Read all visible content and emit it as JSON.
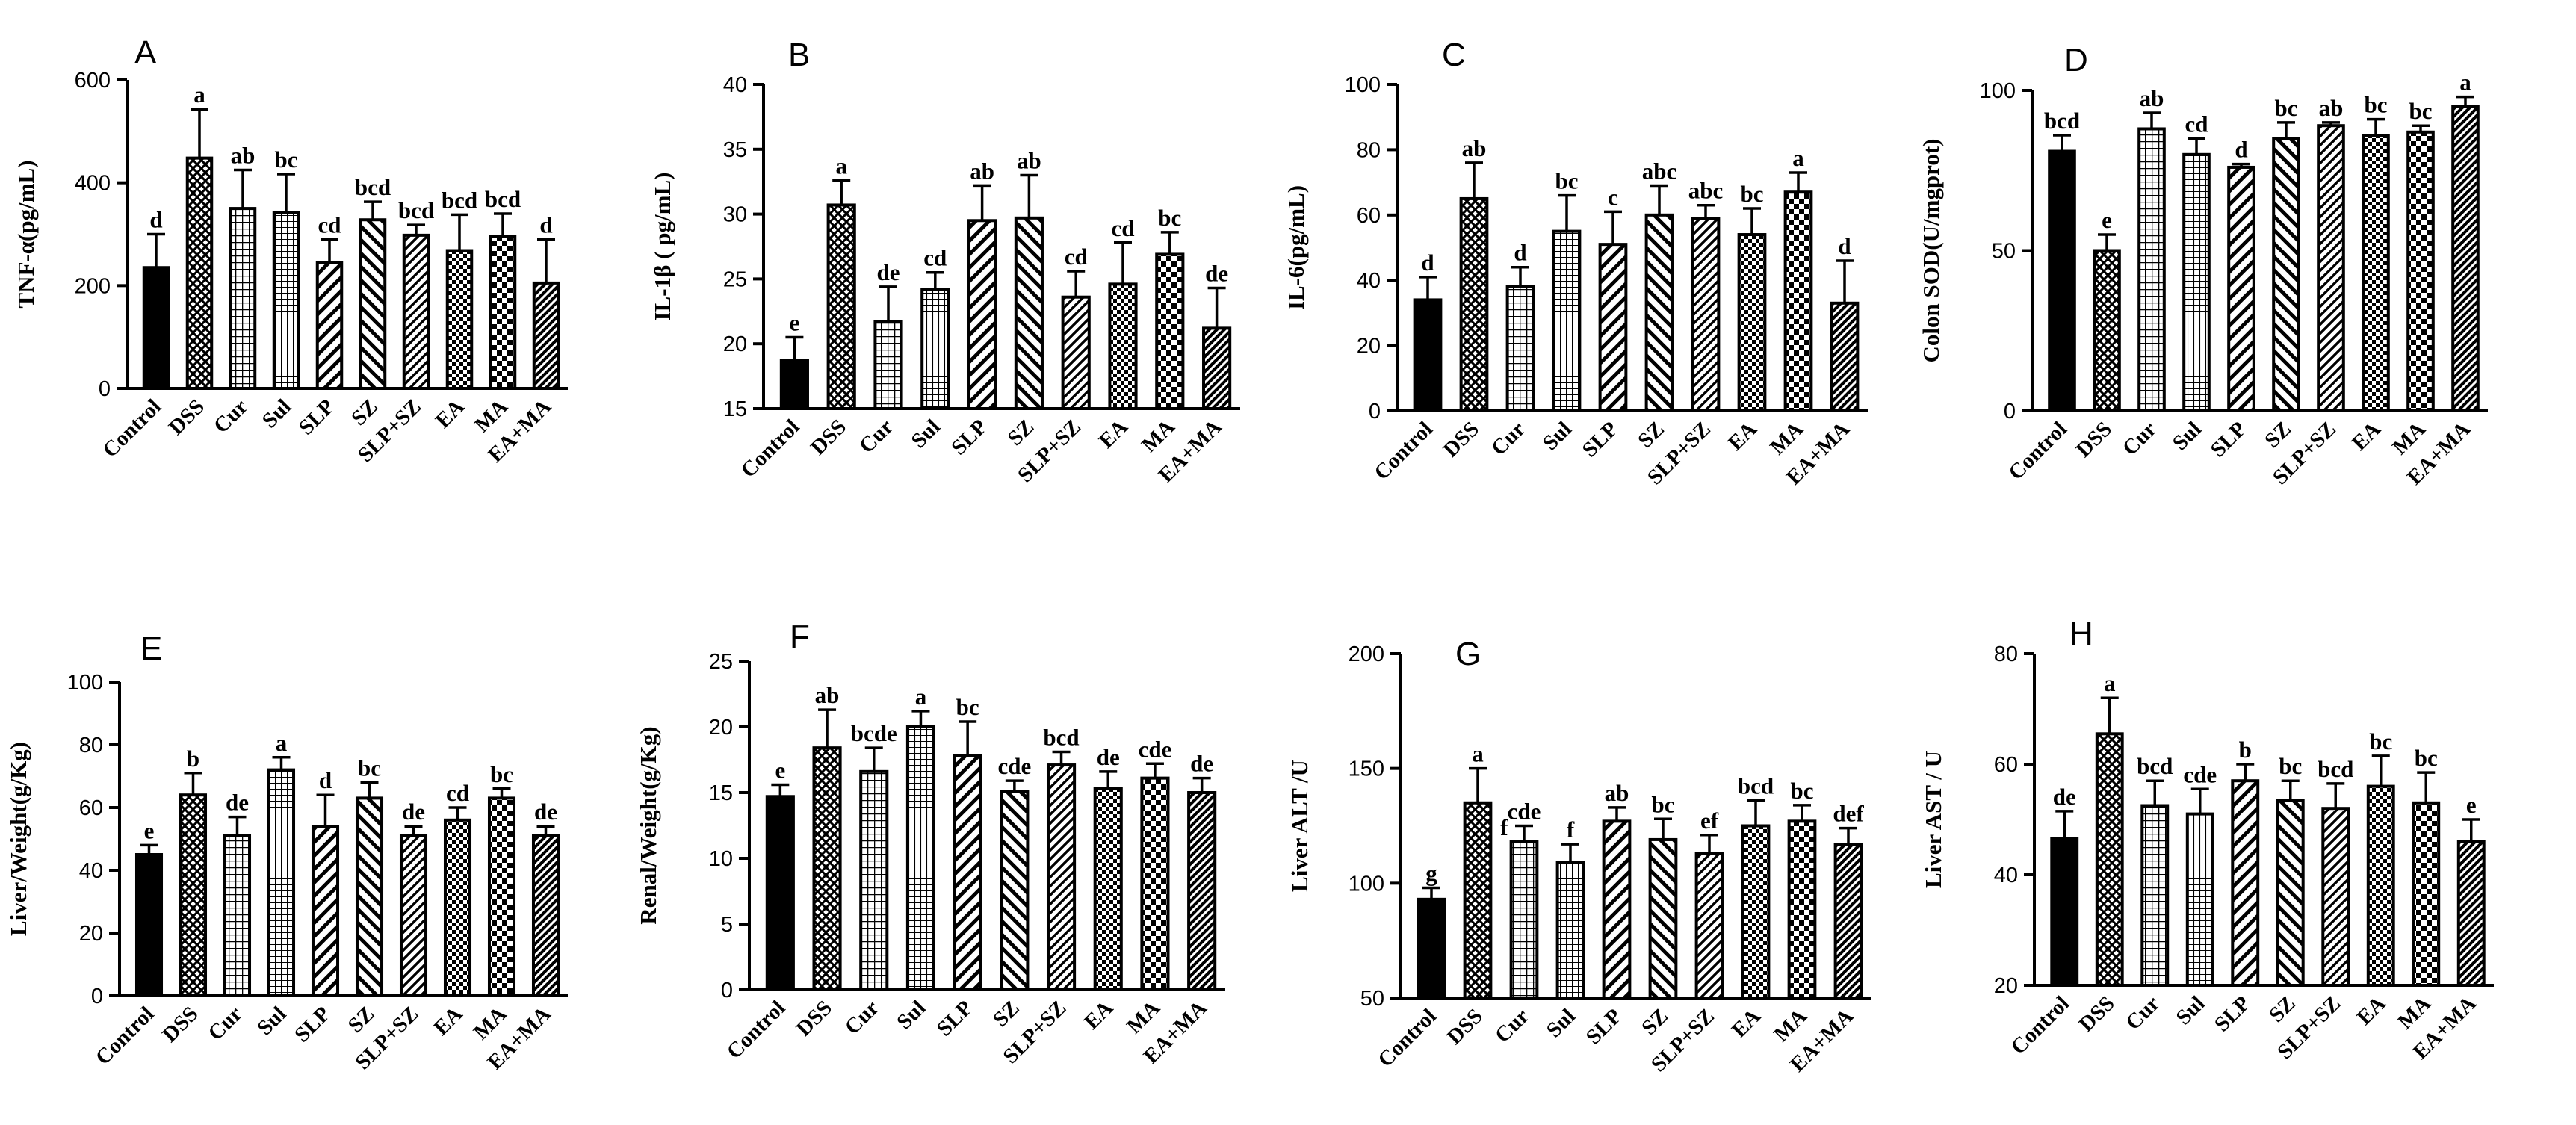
{
  "figure": {
    "colors": {
      "ink": "#000000",
      "paper": "#ffffff"
    },
    "groups": [
      "Control",
      "DSS",
      "Cur",
      "Sul",
      "SLP",
      "SZ",
      "SLP+SZ",
      "EA",
      "MA",
      "EA+MA"
    ],
    "patterns": [
      "solid",
      "crosshatch",
      "grid-fine",
      "grid-fine-light",
      "diag-back",
      "diag-fwd",
      "diag-back-dense",
      "checker-fine",
      "checker-coarse",
      "diag-dense-dark"
    ]
  },
  "chart_data": [
    {
      "panel": "A",
      "type": "bar",
      "ylabel": "TNF-α(pg/mL)",
      "ylim": [
        0,
        600
      ],
      "yticks": [
        0,
        200,
        400,
        600
      ],
      "values": [
        235,
        448,
        350,
        342,
        245,
        328,
        298,
        268,
        295,
        205
      ],
      "errors": [
        65,
        95,
        75,
        75,
        45,
        35,
        20,
        70,
        45,
        85
      ],
      "letters": [
        "d",
        "a",
        "ab",
        "bc",
        "cd",
        "bcd",
        "bcd",
        "bcd",
        "bcd",
        "d"
      ]
    },
    {
      "panel": "B",
      "type": "bar",
      "ylabel": "IL-1β ( pg/mL)",
      "ylim": [
        15,
        40
      ],
      "yticks": [
        15,
        20,
        25,
        30,
        35,
        40
      ],
      "values": [
        18.7,
        30.7,
        21.7,
        24.2,
        29.5,
        29.7,
        23.6,
        24.6,
        26.9,
        21.2
      ],
      "errors": [
        1.8,
        1.9,
        2.7,
        1.3,
        2.7,
        3.3,
        2.0,
        3.2,
        1.7,
        3.1
      ],
      "letters": [
        "e",
        "a",
        "de",
        "cd",
        "ab",
        "ab",
        "cd",
        "cd",
        "bc",
        "de"
      ]
    },
    {
      "panel": "C",
      "type": "bar",
      "ylabel": "IL-6(pg/mL)",
      "ylim": [
        0,
        100
      ],
      "yticks": [
        0,
        20,
        40,
        60,
        80,
        100
      ],
      "values": [
        34,
        65,
        38,
        55,
        51,
        60,
        59,
        54,
        67,
        33
      ],
      "errors": [
        7,
        11,
        6,
        11,
        10,
        9,
        4,
        8,
        6,
        13
      ],
      "letters": [
        "d",
        "ab",
        "d",
        "bc",
        "c",
        "abc",
        "abc",
        "bc",
        "a",
        "d"
      ]
    },
    {
      "panel": "D",
      "type": "bar",
      "ylabel": "Colon SOD(U/mgprot)",
      "ylim": [
        0,
        100
      ],
      "yticks": [
        0,
        50,
        100
      ],
      "values": [
        81,
        50,
        88,
        80,
        76,
        85,
        89,
        86,
        87,
        95
      ],
      "errors": [
        5,
        5,
        5,
        5,
        1,
        5,
        1,
        5,
        2,
        3
      ],
      "letters": [
        "bcd",
        "e",
        "ab",
        "cd",
        "d",
        "bc",
        "ab",
        "bc",
        "bc",
        "a"
      ]
    },
    {
      "panel": "E",
      "type": "bar",
      "ylabel": "Liver/Weight(g/Kg)",
      "ylim": [
        0,
        100
      ],
      "yticks": [
        0,
        20,
        40,
        60,
        80,
        100
      ],
      "values": [
        45,
        64,
        51,
        72,
        54,
        63,
        51,
        56,
        63,
        51
      ],
      "errors": [
        3,
        7,
        6,
        4,
        10,
        5,
        3,
        4,
        3,
        3
      ],
      "letters": [
        "e",
        "b",
        "de",
        "a",
        "d",
        "bc",
        "de",
        "cd",
        "bc",
        "de"
      ]
    },
    {
      "panel": "F",
      "type": "bar",
      "ylabel": "Renal/Weight(g/Kg)",
      "ylim": [
        0,
        25
      ],
      "yticks": [
        0,
        5,
        10,
        15,
        20,
        25
      ],
      "values": [
        14.7,
        18.4,
        16.6,
        20.0,
        17.8,
        15.1,
        17.1,
        15.3,
        16.1,
        15.0
      ],
      "errors": [
        0.9,
        2.9,
        1.8,
        1.2,
        2.6,
        0.8,
        1.0,
        1.3,
        1.1,
        1.1
      ],
      "letters": [
        "e",
        "ab",
        "bcde",
        "a",
        "bc",
        "cde",
        "bcd",
        "de",
        "cde",
        "de"
      ]
    },
    {
      "panel": "G",
      "type": "bar",
      "ylabel": "Liver ALT /U",
      "ylim": [
        50,
        200
      ],
      "yticks": [
        50,
        100,
        150,
        200
      ],
      "values": [
        93,
        135,
        118,
        109,
        127,
        119,
        113,
        125,
        127,
        117
      ],
      "errors": [
        5,
        15,
        7,
        8,
        6,
        9,
        8,
        11,
        7,
        7
      ],
      "letters": [
        "g",
        "a",
        "cde",
        "f",
        "ab",
        "bc",
        "ef",
        "bcd",
        "bc",
        "def"
      ],
      "extra_letters": [
        {
          "index": 2,
          "text": "f"
        }
      ]
    },
    {
      "panel": "H",
      "type": "bar",
      "ylabel": "Liver AST / U",
      "ylim": [
        20,
        80
      ],
      "yticks": [
        20,
        40,
        60,
        80
      ],
      "values": [
        46.5,
        65.5,
        52.5,
        51,
        57,
        53.5,
        52,
        56,
        53,
        46
      ],
      "errors": [
        5,
        6.5,
        4.5,
        4.5,
        3,
        3.5,
        4.5,
        5.5,
        5.5,
        4
      ],
      "letters": [
        "de",
        "a",
        "bcd",
        "cde",
        "b",
        "bc",
        "bcd",
        "bc",
        "bc",
        "e"
      ]
    }
  ]
}
